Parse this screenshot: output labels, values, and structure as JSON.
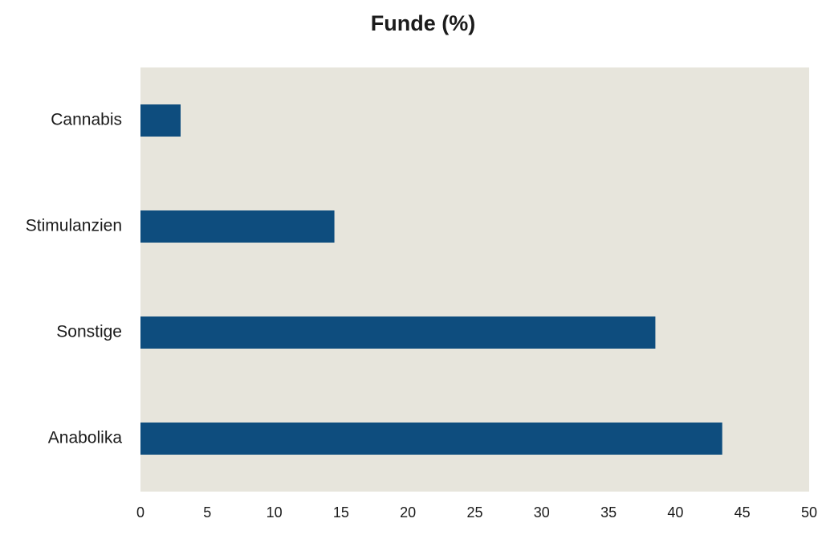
{
  "colors": {
    "bar": "#0e4d7e",
    "plot_background": "#e7e5dc"
  },
  "chart_data": {
    "type": "bar",
    "orientation": "horizontal",
    "title": "Funde (%)",
    "xlabel": "",
    "ylabel": "",
    "categories": [
      "Cannabis",
      "Stimulanzien",
      "Sonstige",
      "Anabolika"
    ],
    "values": [
      3,
      14.5,
      38.5,
      43.5
    ],
    "xlim": [
      0,
      50
    ],
    "xticks": [
      "0",
      "5",
      "10",
      "15",
      "20",
      "25",
      "30",
      "35",
      "40",
      "45",
      "50"
    ],
    "grid": false,
    "legend": "none"
  }
}
